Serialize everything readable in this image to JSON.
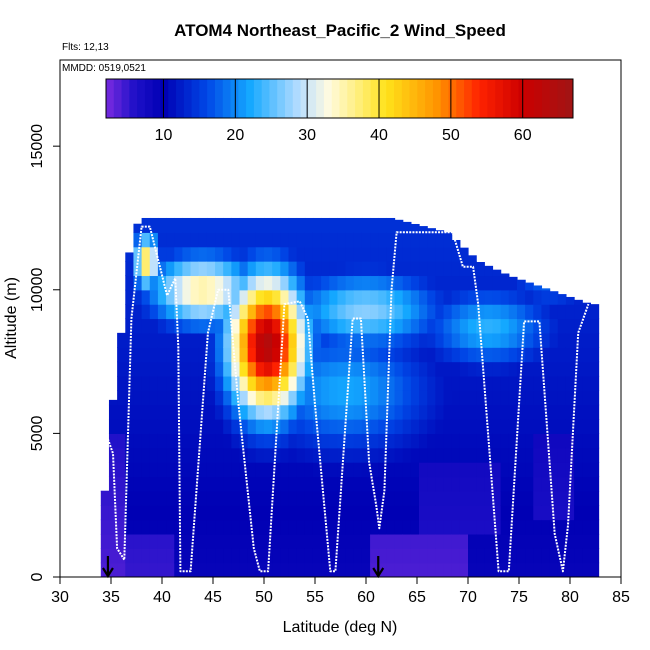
{
  "chart_data": {
    "type": "heatmap",
    "title": "ATOM4 Northeast_Pacific_2 Wind_Speed",
    "flights_text": "Flts: 12,13",
    "dates_text": "MMDD: 0519,0521",
    "xlabel": "Latitude (deg N)",
    "ylabel": "Altitude (m)",
    "xlim": [
      30,
      85
    ],
    "ylim": [
      0,
      18000
    ],
    "x_ticks": [
      "30",
      "35",
      "40",
      "45",
      "50",
      "55",
      "60",
      "65",
      "70",
      "75",
      "80",
      "85"
    ],
    "y_ticks": [
      "0",
      "5000",
      "10000",
      "15000"
    ],
    "grid": false,
    "colorbar": {
      "placement": "top-inside",
      "range": [
        2,
        67
      ],
      "ticks": [
        "10",
        "20",
        "30",
        "40",
        "50",
        "60"
      ],
      "stops": [
        {
          "v": 2,
          "color": "#7a2be0"
        },
        {
          "v": 6,
          "color": "#1f10c8"
        },
        {
          "v": 10,
          "color": "#0000b4"
        },
        {
          "v": 16,
          "color": "#0046e6"
        },
        {
          "v": 22,
          "color": "#14a8ff"
        },
        {
          "v": 29,
          "color": "#b9deff"
        },
        {
          "v": 33,
          "color": "#fffbe0"
        },
        {
          "v": 41,
          "color": "#ffe21a"
        },
        {
          "v": 48,
          "color": "#ff9500"
        },
        {
          "v": 54,
          "color": "#ff2200"
        },
        {
          "v": 60,
          "color": "#cc0000"
        },
        {
          "v": 67,
          "color": "#a01515"
        }
      ]
    },
    "field": {
      "lat_range": [
        34,
        82
      ],
      "bin_width_deg": 0.8,
      "altitude_bin_m": 500,
      "top_altitude_m": [
        {
          "lat": 34.0,
          "alt": 0
        },
        {
          "lat": 34.3,
          "alt": 2500
        },
        {
          "lat": 34.8,
          "alt": 5000
        },
        {
          "lat": 36.0,
          "alt": 8500
        },
        {
          "lat": 37.0,
          "alt": 12000
        },
        {
          "lat": 38.0,
          "alt": 12500
        },
        {
          "lat": 62.5,
          "alt": 12500
        },
        {
          "lat": 68.0,
          "alt": 12000
        },
        {
          "lat": 71.0,
          "alt": 11000
        },
        {
          "lat": 74.0,
          "alt": 10500
        },
        {
          "lat": 78.0,
          "alt": 10000
        },
        {
          "lat": 82.0,
          "alt": 9500
        }
      ],
      "features": [
        {
          "name": "jet-core",
          "lat": 50.3,
          "alt": 8100,
          "rlat": 3.6,
          "ralt": 2300,
          "peak": 64
        },
        {
          "name": "upper-jet-band",
          "lat": 44,
          "alt": 10000,
          "rlat": 5,
          "ralt": 1200,
          "peak": 36
        },
        {
          "name": "upper-left-maximum",
          "lat": 38.5,
          "alt": 11000,
          "rlat": 1.2,
          "ralt": 900,
          "peak": 40
        },
        {
          "name": "upper-middle-band",
          "lat": 60,
          "alt": 9300,
          "rlat": 7,
          "ralt": 1300,
          "peak": 27
        },
        {
          "name": "mid-level-band",
          "lat": 58,
          "alt": 6500,
          "rlat": 8,
          "ralt": 2000,
          "peak": 22
        },
        {
          "name": "northern-band",
          "lat": 72,
          "alt": 8700,
          "rlat": 6,
          "ralt": 1300,
          "peak": 23
        },
        {
          "name": "eastern-upper-band",
          "lat": 78,
          "alt": 10500,
          "rlat": 4,
          "ralt": 1200,
          "peak": 18
        }
      ],
      "low_speed_regions": [
        {
          "lat_from": 34,
          "lat_to": 36.5,
          "alt_from": 0,
          "alt_to": 5000,
          "value": 4
        },
        {
          "lat_from": 36,
          "lat_to": 41,
          "alt_from": 0,
          "alt_to": 1500,
          "value": 5
        },
        {
          "lat_from": 60.5,
          "lat_to": 70,
          "alt_from": 0,
          "alt_to": 1600,
          "value": 4
        },
        {
          "lat_from": 65,
          "lat_to": 73,
          "alt_from": 1500,
          "alt_to": 4000,
          "value": 6
        },
        {
          "lat_from": 76,
          "lat_to": 80.5,
          "alt_from": 2000,
          "alt_to": 5000,
          "value": 6
        }
      ]
    },
    "flight_track": [
      {
        "lat": 34.7,
        "alt": 4800
      },
      {
        "lat": 35.2,
        "alt": 4300
      },
      {
        "lat": 35.6,
        "alt": 1000
      },
      {
        "lat": 36.3,
        "alt": 600
      },
      {
        "lat": 37.0,
        "alt": 9000
      },
      {
        "lat": 38.0,
        "alt": 12200
      },
      {
        "lat": 38.8,
        "alt": 12200
      },
      {
        "lat": 40.5,
        "alt": 9800
      },
      {
        "lat": 41.3,
        "alt": 10400
      },
      {
        "lat": 41.6,
        "alt": 8000
      },
      {
        "lat": 41.8,
        "alt": 200
      },
      {
        "lat": 42.8,
        "alt": 200
      },
      {
        "lat": 44.5,
        "alt": 8500
      },
      {
        "lat": 45.5,
        "alt": 10000
      },
      {
        "lat": 46.5,
        "alt": 10000
      },
      {
        "lat": 47.5,
        "alt": 6000
      },
      {
        "lat": 49.0,
        "alt": 1000
      },
      {
        "lat": 49.6,
        "alt": 200
      },
      {
        "lat": 50.4,
        "alt": 200
      },
      {
        "lat": 52.0,
        "alt": 9500
      },
      {
        "lat": 53.5,
        "alt": 9600
      },
      {
        "lat": 54.3,
        "alt": 9000
      },
      {
        "lat": 55.0,
        "alt": 6000
      },
      {
        "lat": 56.5,
        "alt": 200
      },
      {
        "lat": 57.0,
        "alt": 200
      },
      {
        "lat": 58.7,
        "alt": 9000
      },
      {
        "lat": 59.5,
        "alt": 9000
      },
      {
        "lat": 60.3,
        "alt": 4000
      },
      {
        "lat": 61.0,
        "alt": 2500
      },
      {
        "lat": 61.3,
        "alt": 1700
      },
      {
        "lat": 61.8,
        "alt": 3000
      },
      {
        "lat": 62.5,
        "alt": 10000
      },
      {
        "lat": 63.0,
        "alt": 12000
      },
      {
        "lat": 68.5,
        "alt": 12000
      },
      {
        "lat": 69.5,
        "alt": 10800
      },
      {
        "lat": 70.5,
        "alt": 10800
      },
      {
        "lat": 71.0,
        "alt": 9500
      },
      {
        "lat": 73.0,
        "alt": 200
      },
      {
        "lat": 74.0,
        "alt": 200
      },
      {
        "lat": 75.5,
        "alt": 8900
      },
      {
        "lat": 77.0,
        "alt": 8900
      },
      {
        "lat": 78.5,
        "alt": 1500
      },
      {
        "lat": 79.3,
        "alt": 200
      },
      {
        "lat": 79.8,
        "alt": 1800
      },
      {
        "lat": 80.8,
        "alt": 8500
      },
      {
        "lat": 81.8,
        "alt": 9500
      }
    ],
    "arrows_lat": [
      34.7,
      61.2
    ]
  }
}
